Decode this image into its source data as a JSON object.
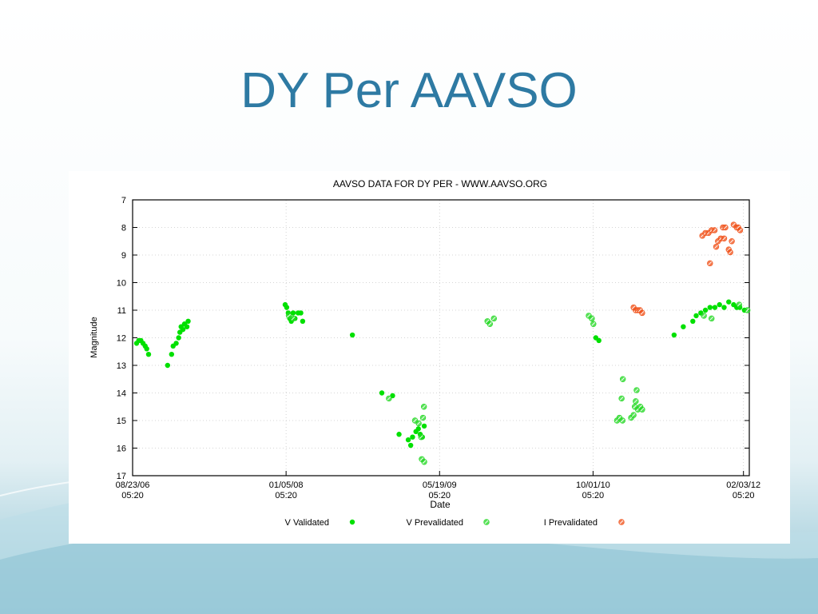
{
  "slide": {
    "title": "DY Per AAVSO"
  },
  "colors": {
    "title": "#2e7aa3",
    "v_validated": "#00e000",
    "v_prevalidated": "#26d826",
    "i_prevalidated": "#f0521a"
  },
  "chart_data": {
    "type": "scatter",
    "title": "AAVSO DATA FOR DY PER - WWW.AAVSO.ORG",
    "xlabel": "Date",
    "ylabel": "Magnitude",
    "ylim": [
      17,
      7
    ],
    "y_inverted": true,
    "y_ticks": [
      "7",
      "8",
      "9",
      "10",
      "11",
      "12",
      "13",
      "14",
      "15",
      "16",
      "17"
    ],
    "x_axis_type": "date",
    "xlim": [
      "2006-08-23",
      "2012-02-22"
    ],
    "x_ticks": [
      {
        "date": "2006-08-23",
        "line1": "08/23/06",
        "line2": "05:20"
      },
      {
        "date": "2008-01-05",
        "line1": "01/05/08",
        "line2": "05:20"
      },
      {
        "date": "2009-05-19",
        "line1": "05/19/09",
        "line2": "05:20"
      },
      {
        "date": "2010-10-01",
        "line1": "10/01/10",
        "line2": "05:20"
      },
      {
        "date": "2012-02-03",
        "line1": "02/03/12",
        "line2": "05:20"
      }
    ],
    "grid": true,
    "legend_position": "bottom",
    "series": [
      {
        "name": "V Validated",
        "marker": "dot",
        "points": [
          [
            "2006-09-05",
            12.2
          ],
          [
            "2006-09-12",
            12.1
          ],
          [
            "2006-09-19",
            12.1
          ],
          [
            "2006-09-26",
            12.2
          ],
          [
            "2006-10-03",
            12.3
          ],
          [
            "2006-10-08",
            12.4
          ],
          [
            "2006-10-14",
            12.6
          ],
          [
            "2006-12-15",
            13.0
          ],
          [
            "2006-12-28",
            12.6
          ],
          [
            "2007-01-02",
            12.3
          ],
          [
            "2007-01-12",
            12.2
          ],
          [
            "2007-01-20",
            12.0
          ],
          [
            "2007-01-24",
            11.8
          ],
          [
            "2007-01-28",
            11.6
          ],
          [
            "2007-02-03",
            11.7
          ],
          [
            "2007-02-08",
            11.5
          ],
          [
            "2007-02-16",
            11.6
          ],
          [
            "2007-02-20",
            11.4
          ],
          [
            "2008-01-02",
            10.8
          ],
          [
            "2008-01-07",
            10.9
          ],
          [
            "2008-01-12",
            11.1
          ],
          [
            "2008-01-17",
            11.3
          ],
          [
            "2008-01-22",
            11.4
          ],
          [
            "2008-01-28",
            11.1
          ],
          [
            "2008-02-03",
            11.3
          ],
          [
            "2008-02-13",
            11.1
          ],
          [
            "2008-02-22",
            11.1
          ],
          [
            "2008-02-28",
            11.4
          ],
          [
            "2008-08-08",
            11.9
          ],
          [
            "2008-11-12",
            14.0
          ],
          [
            "2008-12-17",
            14.1
          ],
          [
            "2009-01-07",
            15.5
          ],
          [
            "2009-02-06",
            15.7
          ],
          [
            "2009-02-14",
            15.9
          ],
          [
            "2009-02-20",
            15.6
          ],
          [
            "2009-03-03",
            15.4
          ],
          [
            "2009-03-11",
            15.3
          ],
          [
            "2009-03-17",
            15.5
          ],
          [
            "2009-03-24",
            15.6
          ],
          [
            "2009-03-30",
            15.2
          ],
          [
            "2010-10-10",
            12.0
          ],
          [
            "2010-10-20",
            12.1
          ],
          [
            "2011-06-22",
            11.9
          ],
          [
            "2011-07-22",
            11.6
          ],
          [
            "2011-08-22",
            11.4
          ],
          [
            "2011-09-02",
            11.2
          ],
          [
            "2011-09-17",
            11.1
          ],
          [
            "2011-10-02",
            11.0
          ],
          [
            "2011-10-17",
            10.9
          ],
          [
            "2011-11-02",
            10.9
          ],
          [
            "2011-11-17",
            10.8
          ],
          [
            "2011-12-02",
            10.9
          ],
          [
            "2011-12-17",
            10.7
          ],
          [
            "2012-01-02",
            10.8
          ],
          [
            "2012-01-12",
            10.9
          ],
          [
            "2012-01-22",
            10.9
          ],
          [
            "2012-02-06",
            11.0
          ]
        ]
      },
      {
        "name": "V Prevalidated",
        "marker": "ring",
        "points": [
          [
            "2008-01-14",
            11.2
          ],
          [
            "2008-01-28",
            11.3
          ],
          [
            "2008-12-05",
            14.2
          ],
          [
            "2009-02-28",
            15.0
          ],
          [
            "2009-03-12",
            15.1
          ],
          [
            "2009-03-20",
            15.6
          ],
          [
            "2009-03-26",
            14.9
          ],
          [
            "2009-03-29",
            14.5
          ],
          [
            "2009-03-22",
            16.4
          ],
          [
            "2009-03-30",
            16.5
          ],
          [
            "2009-10-22",
            11.4
          ],
          [
            "2009-10-30",
            11.5
          ],
          [
            "2009-11-12",
            11.3
          ],
          [
            "2010-09-17",
            11.2
          ],
          [
            "2010-09-27",
            11.3
          ],
          [
            "2010-10-02",
            11.5
          ],
          [
            "2010-12-18",
            15.0
          ],
          [
            "2010-12-26",
            14.9
          ],
          [
            "2011-01-05",
            15.0
          ],
          [
            "2011-01-02",
            14.2
          ],
          [
            "2011-01-06",
            13.5
          ],
          [
            "2011-02-02",
            14.9
          ],
          [
            "2011-02-10",
            14.8
          ],
          [
            "2011-02-14",
            14.5
          ],
          [
            "2011-02-17",
            14.3
          ],
          [
            "2011-02-20",
            13.9
          ],
          [
            "2011-02-24",
            14.6
          ],
          [
            "2011-03-04",
            14.5
          ],
          [
            "2011-03-10",
            14.6
          ],
          [
            "2011-09-27",
            11.2
          ],
          [
            "2011-10-22",
            11.3
          ],
          [
            "2012-01-20",
            10.8
          ],
          [
            "2012-02-16",
            11.0
          ]
        ]
      },
      {
        "name": "I Prevalidated",
        "marker": "ring",
        "points": [
          [
            "2011-02-10",
            10.9
          ],
          [
            "2011-02-17",
            11.0
          ],
          [
            "2011-02-24",
            11.0
          ],
          [
            "2011-03-03",
            11.0
          ],
          [
            "2011-03-10",
            11.1
          ],
          [
            "2011-09-22",
            8.3
          ],
          [
            "2011-10-02",
            8.2
          ],
          [
            "2011-10-12",
            8.2
          ],
          [
            "2011-10-22",
            8.1
          ],
          [
            "2011-11-01",
            8.1
          ],
          [
            "2011-10-17",
            9.3
          ],
          [
            "2011-11-06",
            8.7
          ],
          [
            "2011-11-12",
            8.5
          ],
          [
            "2011-11-21",
            8.4
          ],
          [
            "2011-12-02",
            8.4
          ],
          [
            "2011-11-28",
            8.0
          ],
          [
            "2011-12-06",
            8.0
          ],
          [
            "2011-12-17",
            8.8
          ],
          [
            "2011-12-22",
            8.9
          ],
          [
            "2011-12-27",
            8.5
          ],
          [
            "2012-01-02",
            7.9
          ],
          [
            "2012-01-12",
            8.0
          ],
          [
            "2012-01-17",
            8.0
          ],
          [
            "2012-01-23",
            8.1
          ]
        ]
      }
    ]
  }
}
